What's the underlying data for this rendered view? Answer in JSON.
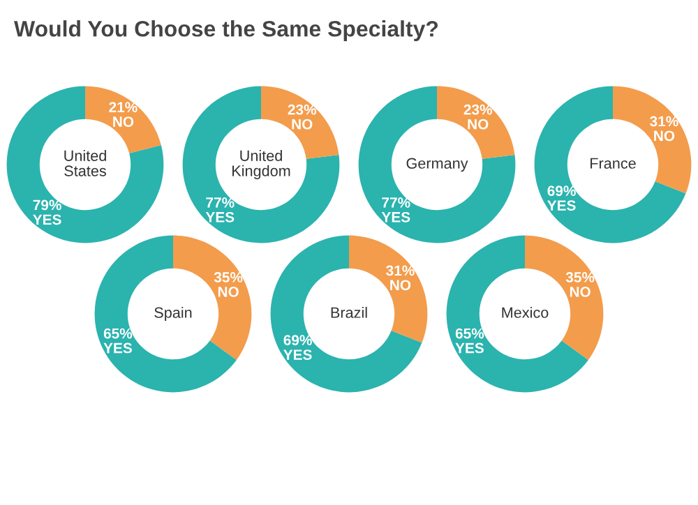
{
  "chart_data": [
    {
      "type": "donut",
      "title": "Would You Choose the Same Specialty?",
      "subtitle": "United States",
      "categories": [
        "YES",
        "NO"
      ],
      "values": [
        79,
        21
      ],
      "value_labels": [
        "79%",
        "21%"
      ],
      "colors": [
        "#2bb3ae",
        "#f39c4c"
      ]
    },
    {
      "type": "donut",
      "subtitle": "United Kingdom",
      "categories": [
        "YES",
        "NO"
      ],
      "values": [
        77,
        23
      ],
      "value_labels": [
        "77%",
        "23%"
      ],
      "colors": [
        "#2bb3ae",
        "#f39c4c"
      ]
    },
    {
      "type": "donut",
      "subtitle": "Germany",
      "categories": [
        "YES",
        "NO"
      ],
      "values": [
        77,
        23
      ],
      "value_labels": [
        "77%",
        "23%"
      ],
      "colors": [
        "#2bb3ae",
        "#f39c4c"
      ]
    },
    {
      "type": "donut",
      "subtitle": "France",
      "categories": [
        "YES",
        "NO"
      ],
      "values": [
        69,
        31
      ],
      "value_labels": [
        "69%",
        "31%"
      ],
      "colors": [
        "#2bb3ae",
        "#f39c4c"
      ]
    },
    {
      "type": "donut",
      "subtitle": "Spain",
      "categories": [
        "YES",
        "NO"
      ],
      "values": [
        65,
        35
      ],
      "value_labels": [
        "65%",
        "35%"
      ],
      "colors": [
        "#2bb3ae",
        "#f39c4c"
      ]
    },
    {
      "type": "donut",
      "subtitle": "Brazil",
      "categories": [
        "YES",
        "NO"
      ],
      "values": [
        69,
        31
      ],
      "value_labels": [
        "69%",
        "31%"
      ],
      "colors": [
        "#2bb3ae",
        "#f39c4c"
      ]
    },
    {
      "type": "donut",
      "subtitle": "Mexico",
      "categories": [
        "YES",
        "NO"
      ],
      "values": [
        65,
        35
      ],
      "value_labels": [
        "65%",
        "35%"
      ],
      "colors": [
        "#2bb3ae",
        "#f39c4c"
      ]
    }
  ]
}
